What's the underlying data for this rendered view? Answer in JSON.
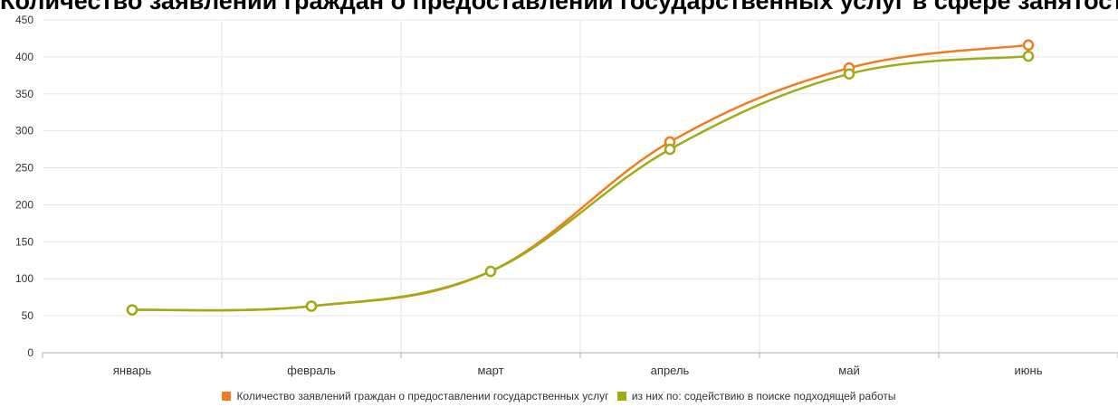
{
  "header": {
    "title": "Количество заявлений граждан о предоставлении государственных услуг в сфере занятости"
  },
  "chart_data": {
    "type": "line",
    "categories": [
      "январь",
      "февраль",
      "март",
      "апрель",
      "май",
      "июнь"
    ],
    "ylim": [
      0,
      450
    ],
    "yticks": [
      0,
      50,
      100,
      150,
      200,
      250,
      300,
      350,
      400,
      450
    ],
    "grid": true,
    "legend_position": "bottom",
    "series": [
      {
        "name": "Количество заявлений граждан о предоставлении государственных услуг",
        "color": "#f47a20",
        "values": [
          58,
          63,
          110,
          285,
          385,
          416
        ]
      },
      {
        "name": "из них по: содействию в поиске подходящей работы",
        "color": "#a0ac14",
        "values": [
          58,
          63,
          110,
          275,
          377,
          401
        ]
      }
    ]
  }
}
